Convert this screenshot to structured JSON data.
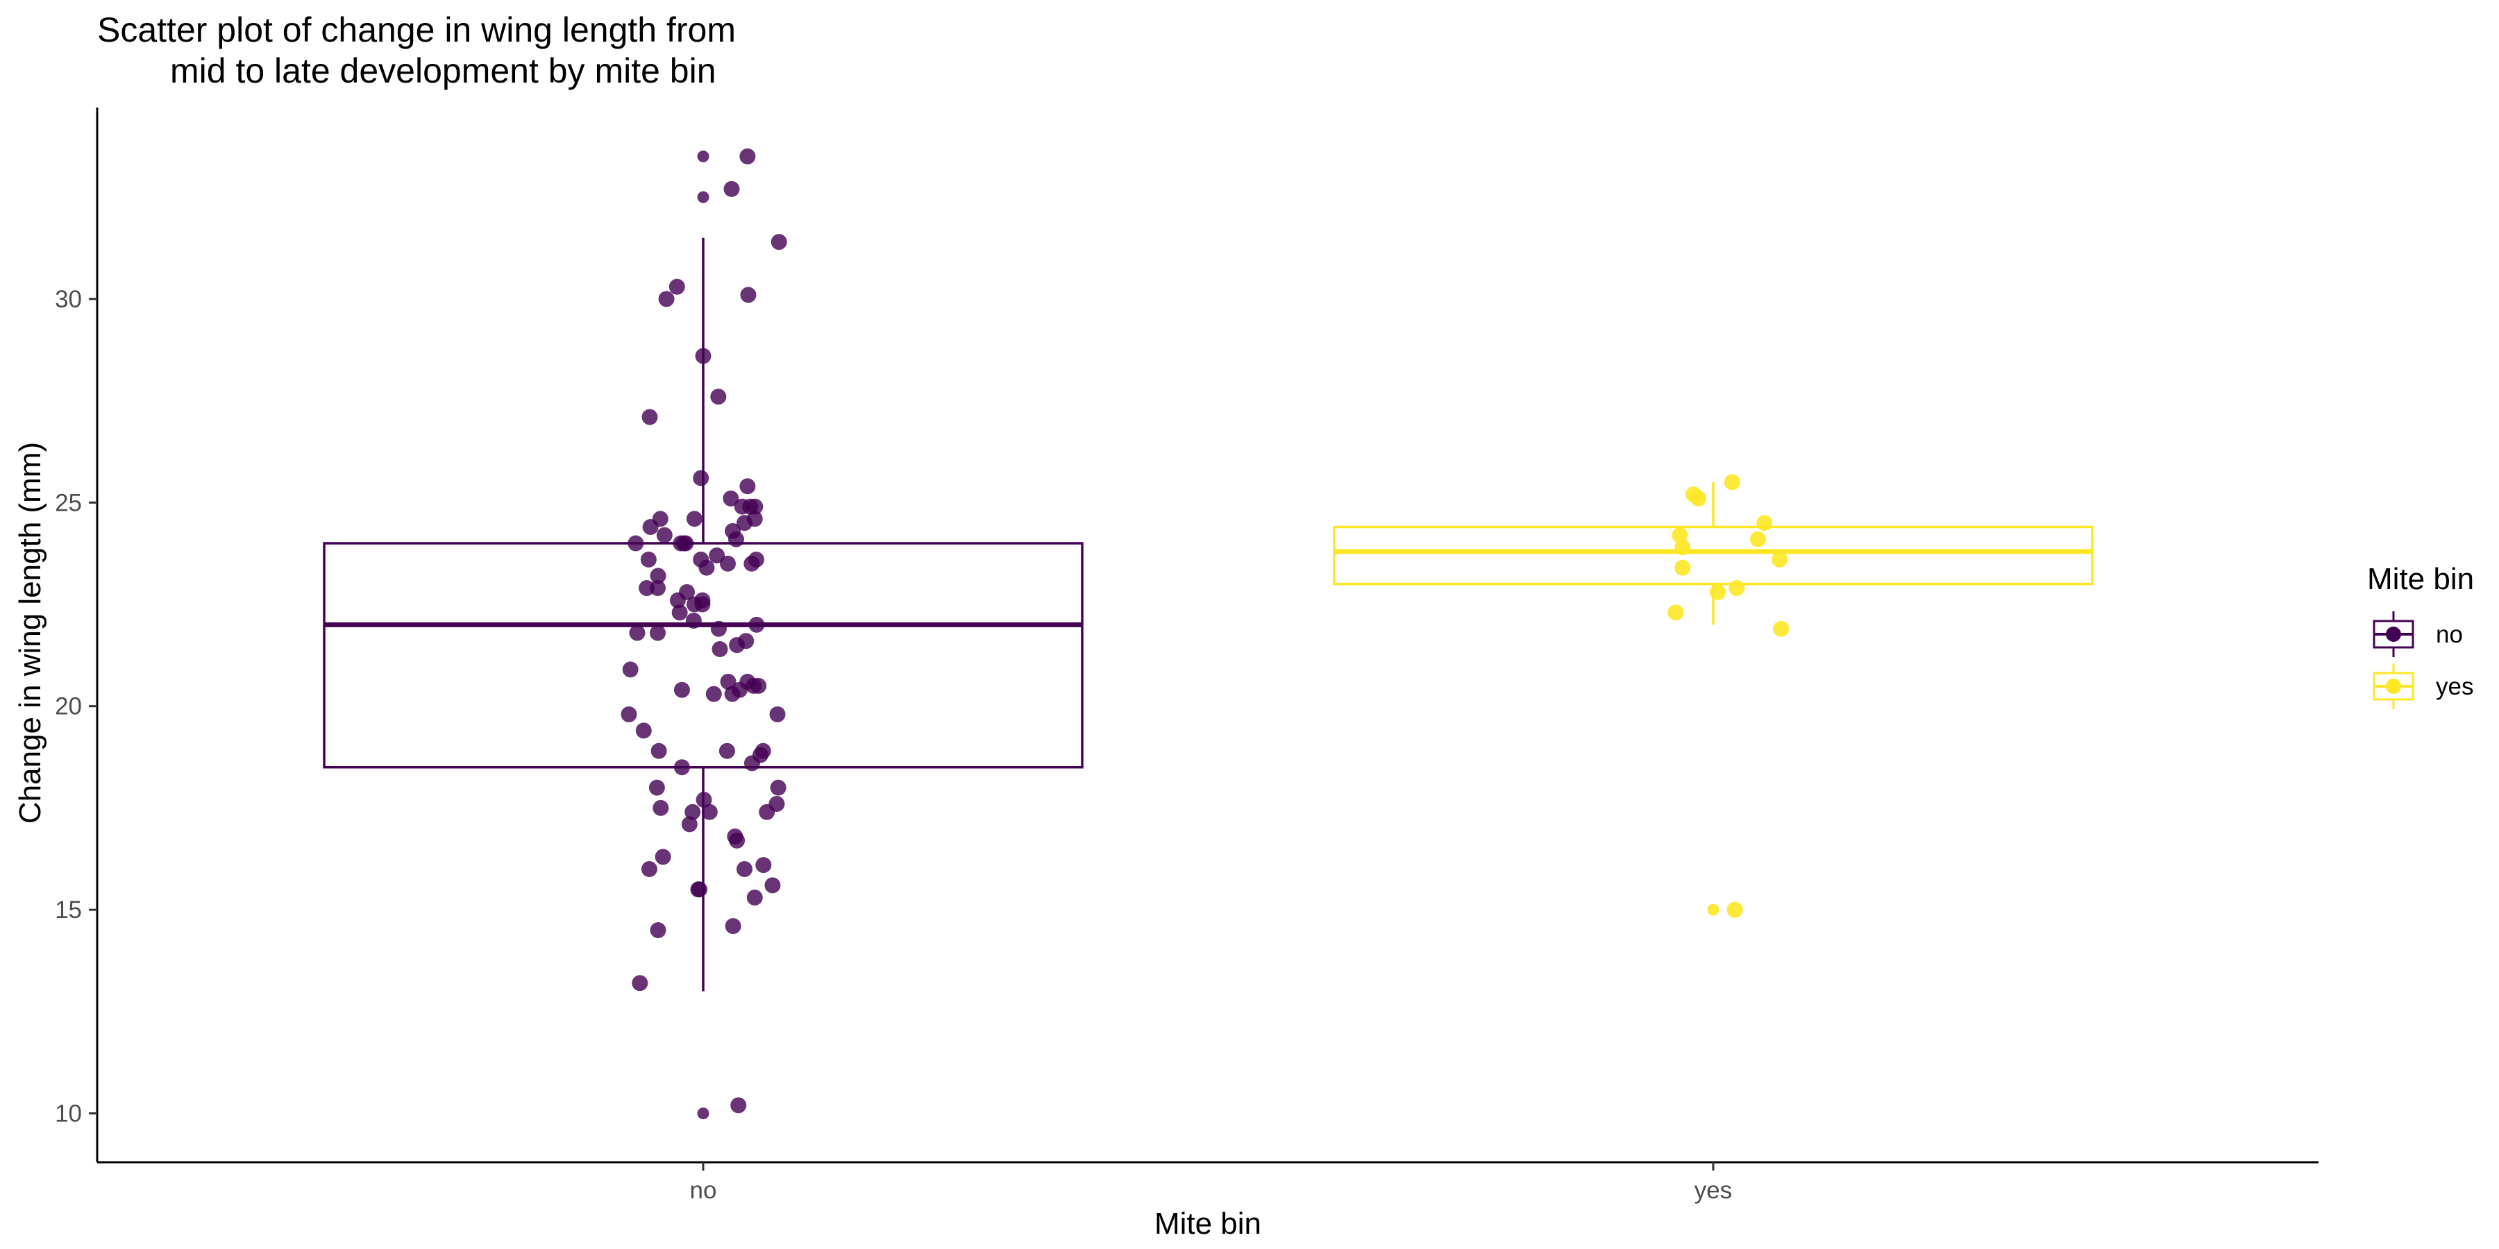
{
  "chart_data": {
    "type": "scatter",
    "subtype": "jittered scatter with boxplot overlay",
    "title_lines": [
      "Scatter plot of change in wing length from",
      "mid to late development by mite bin"
    ],
    "xlabel": "Mite bin",
    "ylabel": "Change in wing length (mm)",
    "categories": [
      "no",
      "yes"
    ],
    "ylim": [
      8.8,
      34.7
    ],
    "yticks": [
      10,
      15,
      20,
      25,
      30
    ],
    "grid": false,
    "legend": {
      "title": "Mite bin",
      "position": "right",
      "entries": [
        "no",
        "yes"
      ]
    },
    "colors": {
      "no": "#440154",
      "yes": "#FDE725"
    },
    "boxplots": [
      {
        "name": "no",
        "q1": 18.5,
        "median": 22.0,
        "q3": 24.0,
        "whisker_low": 13.0,
        "whisker_high": 31.5
      },
      {
        "name": "yes",
        "q1": 23.0,
        "median": 23.8,
        "q3": 24.4,
        "whisker_low": 22.0,
        "whisker_high": 25.5
      }
    ],
    "series": [
      {
        "name": "no",
        "points": [
          {
            "x": 0.0,
            "y": 33.5
          },
          {
            "x": 0.0,
            "y": 32.5
          },
          {
            "x": 0.117,
            "y": 33.5
          },
          {
            "x": 0.075,
            "y": 32.7
          },
          {
            "x": 0.2,
            "y": 31.4
          },
          {
            "x": -0.069,
            "y": 30.3
          },
          {
            "x": -0.097,
            "y": 30.0
          },
          {
            "x": 0.119,
            "y": 30.1
          },
          {
            "x": 0.0,
            "y": 28.6
          },
          {
            "x": 0.04,
            "y": 27.6
          },
          {
            "x": -0.141,
            "y": 27.1
          },
          {
            "x": -0.006,
            "y": 25.6
          },
          {
            "x": 0.073,
            "y": 25.1
          },
          {
            "x": 0.117,
            "y": 25.4
          },
          {
            "x": 0.103,
            "y": 24.9
          },
          {
            "x": 0.124,
            "y": 24.9
          },
          {
            "x": 0.137,
            "y": 24.9
          },
          {
            "x": -0.023,
            "y": 24.6
          },
          {
            "x": -0.113,
            "y": 24.6
          },
          {
            "x": -0.139,
            "y": 24.4
          },
          {
            "x": 0.078,
            "y": 24.3
          },
          {
            "x": 0.109,
            "y": 24.5
          },
          {
            "x": 0.136,
            "y": 24.6
          },
          {
            "x": -0.102,
            "y": 24.2
          },
          {
            "x": 0.087,
            "y": 24.1
          },
          {
            "x": -0.178,
            "y": 24.0
          },
          {
            "x": -0.059,
            "y": 24.0
          },
          {
            "x": -0.051,
            "y": 24.0
          },
          {
            "x": -0.046,
            "y": 24.0
          },
          {
            "x": 0.036,
            "y": 23.7
          },
          {
            "x": 0.14,
            "y": 23.6
          },
          {
            "x": -0.144,
            "y": 23.6
          },
          {
            "x": -0.006,
            "y": 23.6
          },
          {
            "x": 0.128,
            "y": 23.5
          },
          {
            "x": 0.065,
            "y": 23.5
          },
          {
            "x": 0.009,
            "y": 23.4
          },
          {
            "x": -0.119,
            "y": 23.2
          },
          {
            "x": -0.149,
            "y": 22.9
          },
          {
            "x": -0.12,
            "y": 22.9
          },
          {
            "x": -0.043,
            "y": 22.8
          },
          {
            "x": -0.067,
            "y": 22.6
          },
          {
            "x": -0.023,
            "y": 22.5
          },
          {
            "x": -0.002,
            "y": 22.5
          },
          {
            "x": -0.002,
            "y": 22.6
          },
          {
            "x": -0.062,
            "y": 22.3
          },
          {
            "x": -0.025,
            "y": 22.1
          },
          {
            "x": 0.141,
            "y": 22.0
          },
          {
            "x": -0.174,
            "y": 21.8
          },
          {
            "x": -0.12,
            "y": 21.8
          },
          {
            "x": 0.041,
            "y": 21.9
          },
          {
            "x": 0.113,
            "y": 21.6
          },
          {
            "x": 0.089,
            "y": 21.5
          },
          {
            "x": 0.044,
            "y": 21.4
          },
          {
            "x": -0.192,
            "y": 20.9
          },
          {
            "x": 0.066,
            "y": 20.6
          },
          {
            "x": 0.117,
            "y": 20.6
          },
          {
            "x": 0.146,
            "y": 20.5
          },
          {
            "x": 0.133,
            "y": 20.5
          },
          {
            "x": -0.056,
            "y": 20.4
          },
          {
            "x": 0.028,
            "y": 20.3
          },
          {
            "x": 0.077,
            "y": 20.3
          },
          {
            "x": 0.096,
            "y": 20.4
          },
          {
            "x": -0.196,
            "y": 19.8
          },
          {
            "x": 0.196,
            "y": 19.8
          },
          {
            "x": -0.157,
            "y": 19.4
          },
          {
            "x": 0.063,
            "y": 18.9
          },
          {
            "x": -0.117,
            "y": 18.9
          },
          {
            "x": 0.158,
            "y": 18.9
          },
          {
            "x": 0.151,
            "y": 18.8
          },
          {
            "x": 0.129,
            "y": 18.6
          },
          {
            "x": -0.056,
            "y": 18.5
          },
          {
            "x": -0.122,
            "y": 18.0
          },
          {
            "x": 0.198,
            "y": 18.0
          },
          {
            "x": 0.002,
            "y": 17.7
          },
          {
            "x": -0.112,
            "y": 17.5
          },
          {
            "x": -0.028,
            "y": 17.4
          },
          {
            "x": 0.017,
            "y": 17.4
          },
          {
            "x": 0.168,
            "y": 17.4
          },
          {
            "x": 0.194,
            "y": 17.6
          },
          {
            "x": -0.036,
            "y": 17.1
          },
          {
            "x": 0.084,
            "y": 16.8
          },
          {
            "x": 0.089,
            "y": 16.7
          },
          {
            "x": -0.106,
            "y": 16.3
          },
          {
            "x": -0.142,
            "y": 16.0
          },
          {
            "x": 0.109,
            "y": 16.0
          },
          {
            "x": 0.159,
            "y": 16.1
          },
          {
            "x": -0.01,
            "y": 15.5
          },
          {
            "x": -0.013,
            "y": 15.5
          },
          {
            "x": 0.183,
            "y": 15.6
          },
          {
            "x": 0.136,
            "y": 15.3
          },
          {
            "x": 0.079,
            "y": 14.6
          },
          {
            "x": -0.119,
            "y": 14.5
          },
          {
            "x": -0.167,
            "y": 13.2
          },
          {
            "x": 0.0,
            "y": 10.0
          },
          {
            "x": 0.093,
            "y": 10.2
          }
        ]
      },
      {
        "name": "yes",
        "points": [
          {
            "x": 0.05,
            "y": 25.5
          },
          {
            "x": -0.052,
            "y": 25.2
          },
          {
            "x": -0.039,
            "y": 25.1
          },
          {
            "x": 0.135,
            "y": 24.5
          },
          {
            "x": -0.088,
            "y": 24.2
          },
          {
            "x": 0.118,
            "y": 24.1
          },
          {
            "x": -0.081,
            "y": 23.9
          },
          {
            "x": 0.175,
            "y": 23.6
          },
          {
            "x": -0.081,
            "y": 23.4
          },
          {
            "x": 0.062,
            "y": 22.9
          },
          {
            "x": 0.012,
            "y": 22.8
          },
          {
            "x": -0.099,
            "y": 22.3
          },
          {
            "x": 0.179,
            "y": 21.9
          },
          {
            "x": 0.0,
            "y": 15.0
          },
          {
            "x": 0.057,
            "y": 15.0
          }
        ]
      }
    ]
  }
}
